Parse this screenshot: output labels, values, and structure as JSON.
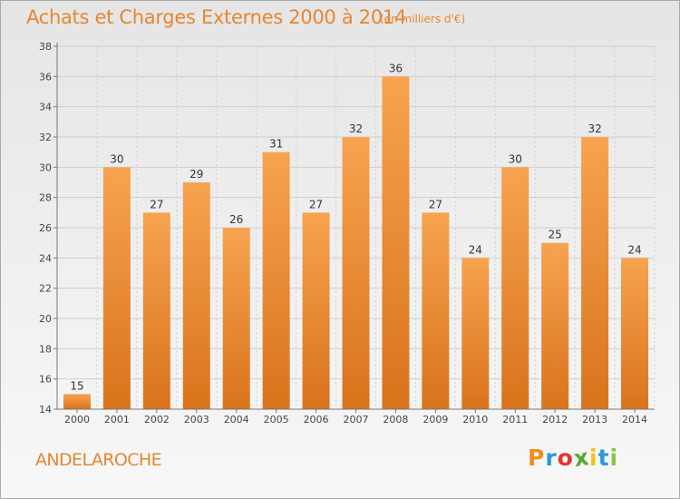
{
  "chart_data": {
    "type": "bar",
    "title": "Achats et Charges Externes 2000 à 2014",
    "subtitle": "(en milliers d'€)",
    "categories": [
      "2000",
      "2001",
      "2002",
      "2003",
      "2004",
      "2005",
      "2006",
      "2007",
      "2008",
      "2009",
      "2010",
      "2011",
      "2012",
      "2013",
      "2014"
    ],
    "values": [
      15,
      30,
      27,
      29,
      26,
      31,
      27,
      32,
      36,
      27,
      24,
      30,
      25,
      32,
      24
    ],
    "ylim": [
      14,
      38
    ],
    "yticks": [
      14,
      16,
      18,
      20,
      22,
      24,
      26,
      28,
      30,
      32,
      34,
      36,
      38
    ],
    "xlabel": "",
    "ylabel": "",
    "grid": true,
    "bar_color": "#e8852f"
  },
  "footer": {
    "commune": "ANDELAROCHE",
    "logo_letters": [
      "P",
      "r",
      "o",
      "x",
      "i",
      "t",
      "i"
    ],
    "logo_colors": [
      "#f28c1d",
      "#2a9ad8",
      "#e9322e",
      "#5aa832",
      "#f0c419",
      "#2a9ad8",
      "#8cc63f"
    ]
  }
}
